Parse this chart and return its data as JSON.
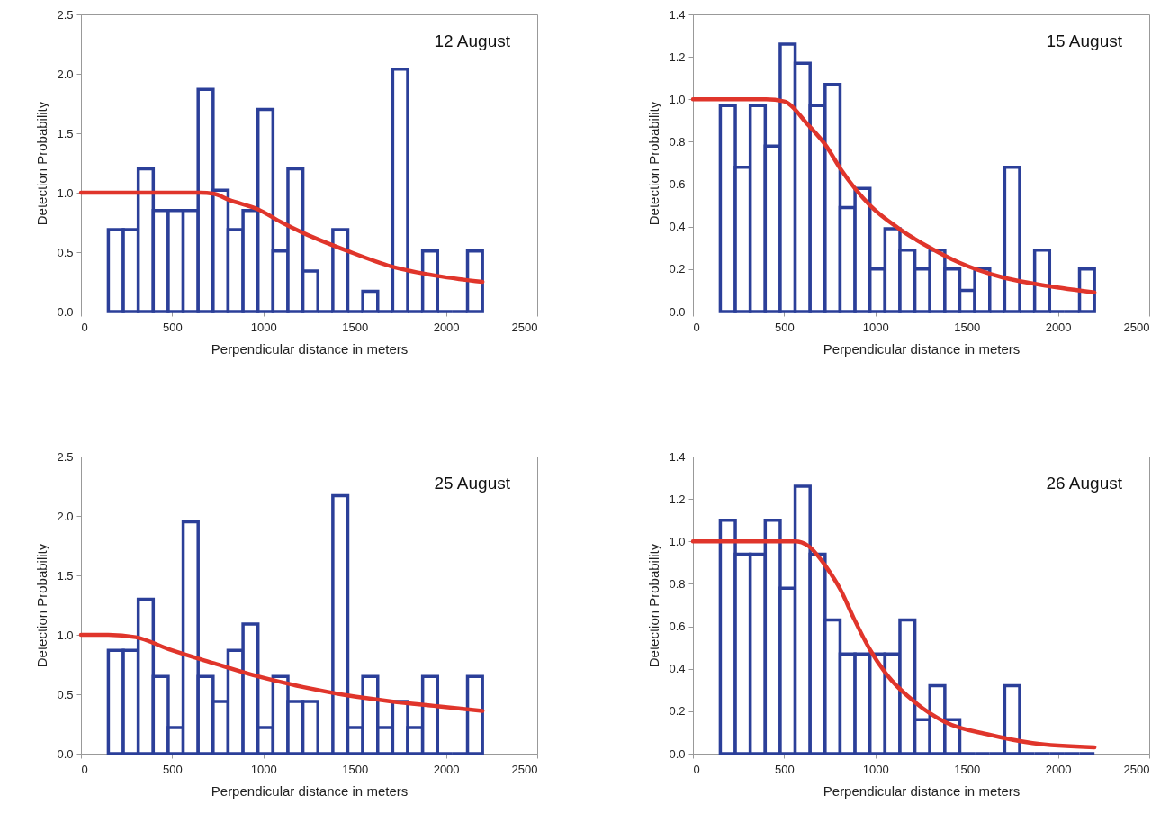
{
  "chart_data": [
    {
      "type": "histogram",
      "annotations": [
        "12 August"
      ],
      "xlabel": "Perpendicular distance in meters",
      "ylabel": "Detection Probability",
      "bins": [
        150,
        232,
        314,
        396,
        478,
        560,
        642,
        724,
        806,
        888,
        970,
        1052,
        1134,
        1216,
        1298,
        1380,
        1462,
        1544,
        1626,
        1708,
        1790,
        1872,
        1954,
        2036,
        2118,
        2200
      ],
      "xlim": [
        0,
        2500
      ],
      "xticks": [
        0,
        500,
        1000,
        1500,
        2000,
        2500
      ],
      "ylim": [
        0,
        2.5
      ],
      "yticks": [
        {
          "value": 0,
          "label": "0.0"
        },
        {
          "value": 0.5,
          "label": "0.5"
        },
        {
          "value": 1,
          "label": "1.0"
        },
        {
          "value": 1.5,
          "label": "1.5"
        },
        {
          "value": 2,
          "label": "2.0"
        },
        {
          "value": 2.5,
          "label": "2.5"
        }
      ],
      "series": [
        {
          "color": "#2b3f99",
          "values": [
            0.69,
            0.69,
            1.2,
            0.85,
            0.85,
            0.85,
            1.87,
            1.02,
            0.69,
            0.85,
            1.7,
            0.51,
            1.2,
            0.34,
            0,
            0.69,
            0,
            0.17,
            0,
            2.04,
            0,
            0.51,
            0,
            0,
            0.51
          ]
        },
        {
          "type": "line",
          "color": "#e0352b",
          "x": [
            0,
            500,
            650,
            730,
            810,
            970,
            1100,
            1220,
            1460,
            1700,
            1950,
            2200
          ],
          "values": [
            1,
            1,
            1,
            0.99,
            0.94,
            0.86,
            0.75,
            0.66,
            0.51,
            0.38,
            0.3,
            0.25
          ]
        }
      ]
    },
    {
      "type": "histogram",
      "annotations": [
        "15 August"
      ],
      "xlabel": "Perpendicular distance in meters",
      "ylabel": "Detection Probability",
      "bins": [
        150,
        232,
        314,
        396,
        478,
        560,
        642,
        724,
        806,
        888,
        970,
        1052,
        1134,
        1216,
        1298,
        1380,
        1462,
        1544,
        1626,
        1708,
        1790,
        1872,
        1954,
        2036,
        2118,
        2200
      ],
      "xlim": [
        0,
        2500
      ],
      "xticks": [
        0,
        500,
        1000,
        1500,
        2000,
        2500
      ],
      "ylim": [
        0,
        1.4
      ],
      "yticks": [
        {
          "value": 0,
          "label": "0.0"
        },
        {
          "value": 0.2,
          "label": "0.2"
        },
        {
          "value": 0.4,
          "label": "0.4"
        },
        {
          "value": 0.6,
          "label": "0.6"
        },
        {
          "value": 0.8,
          "label": "0.8"
        },
        {
          "value": 1,
          "label": "1.0"
        },
        {
          "value": 1.2,
          "label": "1.2"
        },
        {
          "value": 1.4,
          "label": "1.4"
        }
      ],
      "series": [
        {
          "color": "#2b3f99",
          "values": [
            0.97,
            0.68,
            0.97,
            0.78,
            1.26,
            1.17,
            0.97,
            1.07,
            0.49,
            0.58,
            0.2,
            0.39,
            0.29,
            0.2,
            0.29,
            0.2,
            0.1,
            0.2,
            0,
            0.68,
            0,
            0.29,
            0,
            0,
            0.2
          ]
        },
        {
          "type": "line",
          "color": "#e0352b",
          "x": [
            0,
            400,
            500,
            630,
            730,
            810,
            970,
            1130,
            1300,
            1460,
            1700,
            1950,
            2200
          ],
          "values": [
            1,
            1,
            0.99,
            0.88,
            0.78,
            0.67,
            0.5,
            0.39,
            0.3,
            0.23,
            0.16,
            0.12,
            0.09
          ]
        }
      ]
    },
    {
      "type": "histogram",
      "annotations": [
        "25 August"
      ],
      "xlabel": "Perpendicular distance in meters",
      "ylabel": "Detection Probability",
      "bins": [
        150,
        232,
        314,
        396,
        478,
        560,
        642,
        724,
        806,
        888,
        970,
        1052,
        1134,
        1216,
        1298,
        1380,
        1462,
        1544,
        1626,
        1708,
        1790,
        1872,
        1954,
        2036,
        2118,
        2200
      ],
      "xlim": [
        0,
        2500
      ],
      "xticks": [
        0,
        500,
        1000,
        1500,
        2000,
        2500
      ],
      "ylim": [
        0,
        2.5
      ],
      "yticks": [
        {
          "value": 0,
          "label": "0.0"
        },
        {
          "value": 0.5,
          "label": "0.5"
        },
        {
          "value": 1,
          "label": "1.0"
        },
        {
          "value": 1.5,
          "label": "1.5"
        },
        {
          "value": 2,
          "label": "2.0"
        },
        {
          "value": 2.5,
          "label": "2.5"
        }
      ],
      "series": [
        {
          "color": "#2b3f99",
          "values": [
            0.87,
            0.87,
            1.3,
            0.65,
            0.22,
            1.95,
            0.65,
            0.44,
            0.87,
            1.09,
            0.22,
            0.65,
            0.44,
            0.44,
            0,
            2.17,
            0.22,
            0.65,
            0.22,
            0.44,
            0.22,
            0.65,
            0,
            0,
            0.65
          ]
        },
        {
          "type": "line",
          "color": "#e0352b",
          "x": [
            0,
            150,
            300,
            480,
            730,
            970,
            1220,
            1460,
            1700,
            1950,
            2200
          ],
          "values": [
            1,
            1,
            0.98,
            0.88,
            0.76,
            0.65,
            0.56,
            0.49,
            0.44,
            0.4,
            0.36
          ]
        }
      ]
    },
    {
      "type": "histogram",
      "annotations": [
        "26 August"
      ],
      "xlabel": "Perpendicular distance in meters",
      "ylabel": "Detection Probability",
      "bins": [
        150,
        232,
        314,
        396,
        478,
        560,
        642,
        724,
        806,
        888,
        970,
        1052,
        1134,
        1216,
        1298,
        1380,
        1462,
        1544,
        1626,
        1708,
        1790,
        1872,
        1954,
        2036,
        2118,
        2200
      ],
      "xlim": [
        0,
        2500
      ],
      "xticks": [
        0,
        500,
        1000,
        1500,
        2000,
        2500
      ],
      "ylim": [
        0,
        1.4
      ],
      "yticks": [
        {
          "value": 0,
          "label": "0.0"
        },
        {
          "value": 0.2,
          "label": "0.2"
        },
        {
          "value": 0.4,
          "label": "0.4"
        },
        {
          "value": 0.6,
          "label": "0.6"
        },
        {
          "value": 0.8,
          "label": "0.8"
        },
        {
          "value": 1,
          "label": "1.0"
        },
        {
          "value": 1.2,
          "label": "1.2"
        },
        {
          "value": 1.4,
          "label": "1.4"
        }
      ],
      "series": [
        {
          "color": "#2b3f99",
          "values": [
            1.1,
            0.94,
            0.94,
            1.1,
            0.78,
            1.26,
            0.94,
            0.63,
            0.47,
            0.47,
            0.47,
            0.47,
            0.63,
            0.16,
            0.32,
            0.16,
            0,
            0,
            0,
            0.32,
            0,
            0,
            0,
            0,
            0
          ]
        },
        {
          "type": "line",
          "color": "#e0352b",
          "x": [
            0,
            560,
            630,
            730,
            810,
            880,
            970,
            1055,
            1220,
            1380,
            1620,
            1860,
            2200
          ],
          "values": [
            1,
            1,
            0.98,
            0.88,
            0.77,
            0.64,
            0.49,
            0.38,
            0.24,
            0.15,
            0.09,
            0.05,
            0.03
          ]
        }
      ]
    }
  ]
}
